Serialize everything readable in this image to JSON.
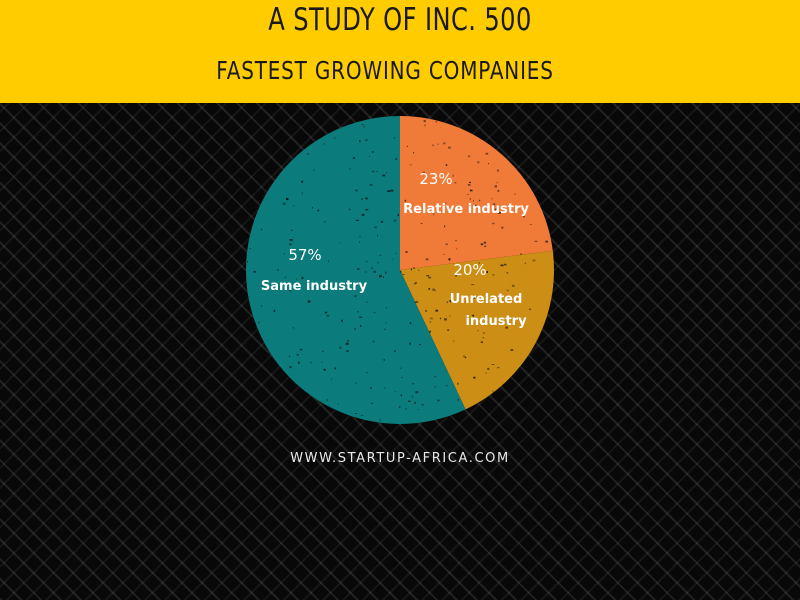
{
  "header": {
    "title": "A STUDY OF INC. 500",
    "subtitle": "FASTEST GROWING COMPANIES"
  },
  "colors": {
    "header_bg": "#FFCC00",
    "relative": "#F07A38",
    "unrelated": "#CC8E15",
    "same": "#0B7B7B"
  },
  "chart_data": {
    "type": "pie",
    "categories": [
      "Relative industry",
      "Unrelated industry",
      "Same industry"
    ],
    "values": [
      23,
      20,
      57
    ],
    "value_labels": [
      "23%",
      "20%",
      "57%"
    ],
    "label_lines": [
      [
        "Relative industry"
      ],
      [
        "Unrelated",
        "industry"
      ],
      [
        "Same industry"
      ]
    ],
    "colors": [
      "#F07A38",
      "#CC8E15",
      "#0B7B7B"
    ]
  },
  "footer": {
    "url": "WWW.STARTUP-AFRICA.COM"
  }
}
